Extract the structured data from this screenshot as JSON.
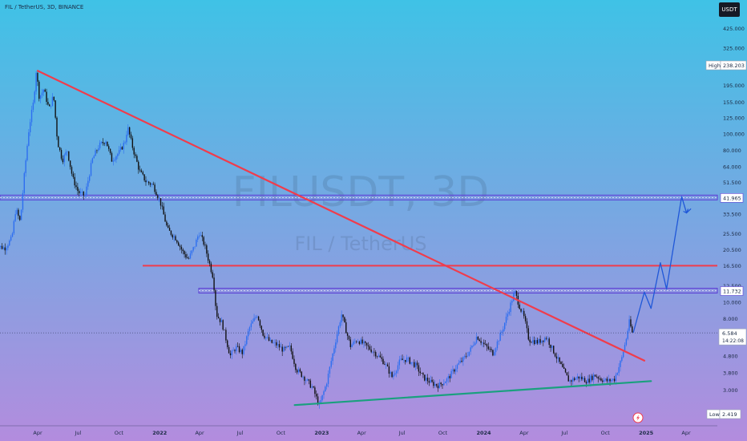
{
  "header": {
    "symbol_line": "FIL / TetherUS, 3D, BINANCE",
    "currency_button": "USDT"
  },
  "watermark": {
    "main": "FILUSDT, 3D",
    "sub": "FIL / TetherUS"
  },
  "colors": {
    "bg_top": "#3fc2e6",
    "bg_bottom": "#b38cde",
    "up_candle": "#2d6ef0",
    "down_candle": "#111111",
    "resistance": "#f03c4c",
    "support": "#1aa07e",
    "zone_fill": "#8a7ae0",
    "zone_border": "#5b3fd4",
    "projection": "#1f57d8"
  },
  "chart_data": {
    "type": "candlestick",
    "symbol": "FIL / TetherUS",
    "interval": "3D",
    "exchange": "BINANCE",
    "scale": "log",
    "ylim": [
      2.2,
      520
    ],
    "y_ticks": [
      425,
      325,
      255,
      195,
      155,
      125,
      100,
      80,
      64,
      51.5,
      41.965,
      33.5,
      25.5,
      20.5,
      16.5,
      12.5,
      11.732,
      10,
      8,
      6.584,
      4.8,
      3.8,
      3.0,
      2.419
    ],
    "y_tick_labels": [
      "425.000",
      "325.000",
      "255.000",
      "195.000",
      "155.000",
      "125.000",
      "100.000",
      "80.000",
      "64.000",
      "51.500",
      "41.965",
      "33.500",
      "25.500",
      "20.500",
      "16.500",
      "12.500",
      "11.732",
      "10.000",
      "8.000",
      "6.584",
      "4.800",
      "3.800",
      "3.000",
      "2.419"
    ],
    "x_ticks": [
      {
        "date": "2021-04-01",
        "label": "Apr"
      },
      {
        "date": "2021-07-01",
        "label": "Jul"
      },
      {
        "date": "2021-10-01",
        "label": "Oct"
      },
      {
        "date": "2022-01-01",
        "label": "2022"
      },
      {
        "date": "2022-04-01",
        "label": "Apr"
      },
      {
        "date": "2022-07-01",
        "label": "Jul"
      },
      {
        "date": "2022-10-01",
        "label": "Oct"
      },
      {
        "date": "2023-01-01",
        "label": "2023"
      },
      {
        "date": "2023-04-01",
        "label": "Apr"
      },
      {
        "date": "2023-07-01",
        "label": "Jul"
      },
      {
        "date": "2023-10-01",
        "label": "Oct"
      },
      {
        "date": "2024-01-01",
        "label": "2024"
      },
      {
        "date": "2024-04-01",
        "label": "Apr"
      },
      {
        "date": "2024-07-01",
        "label": "Jul"
      },
      {
        "date": "2024-10-01",
        "label": "Oct"
      },
      {
        "date": "2025-01-01",
        "label": "2025"
      },
      {
        "date": "2025-04-01",
        "label": "Apr"
      }
    ],
    "price_path": [
      [
        "2020-12-25",
        22
      ],
      [
        "2021-01-20",
        21
      ],
      [
        "2021-02-05",
        24
      ],
      [
        "2021-02-14",
        36
      ],
      [
        "2021-02-24",
        30
      ],
      [
        "2021-03-06",
        60
      ],
      [
        "2021-03-16",
        110
      ],
      [
        "2021-03-26",
        155
      ],
      [
        "2021-04-01",
        238.2
      ],
      [
        "2021-04-08",
        165
      ],
      [
        "2021-04-18",
        185
      ],
      [
        "2021-04-30",
        140
      ],
      [
        "2021-05-10",
        170
      ],
      [
        "2021-05-19",
        90
      ],
      [
        "2021-05-30",
        70
      ],
      [
        "2021-06-10",
        80
      ],
      [
        "2021-06-22",
        55
      ],
      [
        "2021-07-05",
        45
      ],
      [
        "2021-07-20",
        43
      ],
      [
        "2021-08-05",
        70
      ],
      [
        "2021-08-20",
        85
      ],
      [
        "2021-09-05",
        92
      ],
      [
        "2021-09-18",
        70
      ],
      [
        "2021-10-05",
        78
      ],
      [
        "2021-10-18",
        90
      ],
      [
        "2021-10-24",
        110
      ],
      [
        "2021-11-05",
        82
      ],
      [
        "2021-11-20",
        60
      ],
      [
        "2021-12-05",
        52
      ],
      [
        "2021-12-20",
        50
      ],
      [
        "2022-01-05",
        40
      ],
      [
        "2022-01-22",
        27
      ],
      [
        "2022-02-10",
        24
      ],
      [
        "2022-02-25",
        20
      ],
      [
        "2022-03-10",
        18
      ],
      [
        "2022-03-25",
        22
      ],
      [
        "2022-04-03",
        26
      ],
      [
        "2022-04-15",
        22
      ],
      [
        "2022-05-05",
        14
      ],
      [
        "2022-05-12",
        8.5
      ],
      [
        "2022-05-25",
        7.5
      ],
      [
        "2022-06-12",
        4.8
      ],
      [
        "2022-06-25",
        5.4
      ],
      [
        "2022-07-10",
        5.0
      ],
      [
        "2022-07-25",
        7.0
      ],
      [
        "2022-08-12",
        8.5
      ],
      [
        "2022-08-25",
        6.5
      ],
      [
        "2022-09-10",
        5.8
      ],
      [
        "2022-09-25",
        5.6
      ],
      [
        "2022-10-10",
        5.2
      ],
      [
        "2022-10-25",
        5.4
      ],
      [
        "2022-11-08",
        4.0
      ],
      [
        "2022-11-25",
        3.6
      ],
      [
        "2022-12-15",
        3.1
      ],
      [
        "2022-12-30",
        2.42
      ],
      [
        "2023-01-15",
        3.3
      ],
      [
        "2023-02-05",
        6.0
      ],
      [
        "2023-02-18",
        8.5
      ],
      [
        "2023-03-10",
        5.5
      ],
      [
        "2023-03-25",
        6.0
      ],
      [
        "2023-04-15",
        5.5
      ],
      [
        "2023-05-05",
        5.0
      ],
      [
        "2023-05-25",
        4.4
      ],
      [
        "2023-06-12",
        3.6
      ],
      [
        "2023-06-30",
        4.5
      ],
      [
        "2023-07-15",
        4.6
      ],
      [
        "2023-08-05",
        4.2
      ],
      [
        "2023-08-20",
        3.6
      ],
      [
        "2023-09-10",
        3.3
      ],
      [
        "2023-09-25",
        3.2
      ],
      [
        "2023-10-15",
        3.5
      ],
      [
        "2023-11-05",
        4.2
      ],
      [
        "2023-11-20",
        4.6
      ],
      [
        "2023-12-05",
        5.2
      ],
      [
        "2023-12-20",
        6.3
      ],
      [
        "2024-01-05",
        5.6
      ],
      [
        "2024-01-25",
        5.0
      ],
      [
        "2024-02-15",
        6.8
      ],
      [
        "2024-03-01",
        9.0
      ],
      [
        "2024-03-14",
        11.6
      ],
      [
        "2024-03-25",
        9.5
      ],
      [
        "2024-04-05",
        8.0
      ],
      [
        "2024-04-15",
        6.0
      ],
      [
        "2024-05-05",
        5.8
      ],
      [
        "2024-05-25",
        6.2
      ],
      [
        "2024-06-15",
        4.8
      ],
      [
        "2024-07-05",
        3.8
      ],
      [
        "2024-07-15",
        3.4
      ],
      [
        "2024-08-05",
        3.6
      ],
      [
        "2024-08-25",
        3.4
      ],
      [
        "2024-09-10",
        3.7
      ],
      [
        "2024-09-25",
        3.5
      ],
      [
        "2024-10-10",
        3.4
      ],
      [
        "2024-10-25",
        3.5
      ],
      [
        "2024-11-10",
        4.6
      ],
      [
        "2024-11-20",
        6.0
      ],
      [
        "2024-11-28",
        7.8
      ],
      [
        "2024-12-03",
        6.584
      ]
    ],
    "annotations": {
      "high": {
        "label": "High",
        "value": "238.203"
      },
      "low": {
        "label": "Low",
        "value": "2.419"
      },
      "last_price": {
        "value": "6.584",
        "countdown": "14:22:08"
      },
      "levels": [
        {
          "type": "zone",
          "value": 41.965,
          "label": "41.965"
        },
        {
          "type": "line",
          "value": 16.5
        },
        {
          "type": "zone",
          "value": 11.732,
          "label": "11.732"
        }
      ],
      "trendlines": [
        {
          "kind": "resistance",
          "from": [
            "2021-04-01",
            238
          ],
          "to": [
            "2024-12-28",
            4.5
          ]
        },
        {
          "kind": "support",
          "from": [
            "2022-11-01",
            2.45
          ],
          "to": [
            "2025-01-12",
            3.4
          ]
        }
      ],
      "projection": [
        [
          "2024-12-03",
          6.6
        ],
        [
          "2024-12-28",
          11.5
        ],
        [
          "2025-01-12",
          9.2
        ],
        [
          "2025-02-02",
          17.2
        ],
        [
          "2025-02-16",
          12.0
        ],
        [
          "2025-03-22",
          42.5
        ],
        [
          "2025-04-02",
          34.0
        ],
        [
          "2025-04-12",
          36.0
        ]
      ]
    }
  }
}
